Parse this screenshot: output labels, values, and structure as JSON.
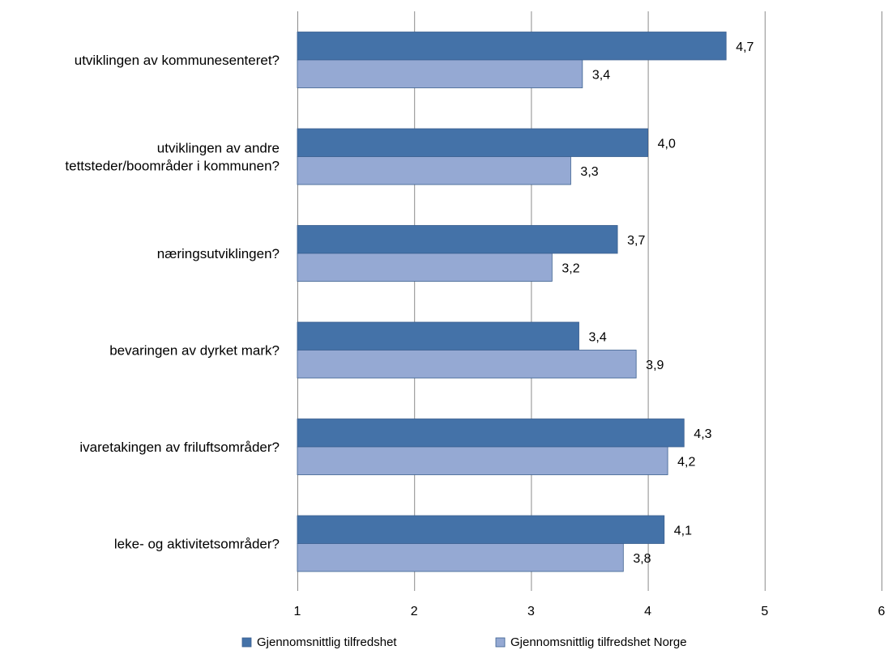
{
  "chart_data": {
    "type": "bar",
    "orientation": "horizontal",
    "categories": [
      "utviklingen av kommunesenteret?",
      "utviklingen av andre tettsteder/boområder i kommunen?",
      "næringsutviklingen?",
      "bevaringen av dyrket mark?",
      "ivaretakingen av friluftsområder?",
      "leke- og aktivitetsområder?"
    ],
    "category_lines": [
      [
        "utviklingen av kommunesenteret?"
      ],
      [
        "utviklingen av andre",
        "tettsteder/boområder i kommunen?"
      ],
      [
        "næringsutviklingen?"
      ],
      [
        "bevaringen av dyrket mark?"
      ],
      [
        "ivaretakingen av friluftsområder?"
      ],
      [
        "leke- og aktivitetsområder?"
      ]
    ],
    "series": [
      {
        "name": "Gjennomsnittlig tilfredshet",
        "values": [
          4.67,
          4.0,
          3.74,
          3.41,
          4.31,
          4.14
        ],
        "labels": [
          "4,7",
          "4,0",
          "3,7",
          "3,4",
          "4,3",
          "4,1"
        ],
        "color": "#4472a8"
      },
      {
        "name": "Gjennomsnittlig tilfredshet Norge",
        "values": [
          3.44,
          3.34,
          3.18,
          3.9,
          4.17,
          3.79
        ],
        "labels": [
          "3,4",
          "3,3",
          "3,2",
          "3,9",
          "4,2",
          "3,8"
        ],
        "color": "#95a9d3"
      }
    ],
    "xlim": [
      1,
      6
    ],
    "xticks": [
      "1",
      "2",
      "3",
      "4",
      "5",
      "6"
    ],
    "grid": true,
    "legend_position": "bottom",
    "title": "",
    "xlabel": "",
    "ylabel": ""
  }
}
